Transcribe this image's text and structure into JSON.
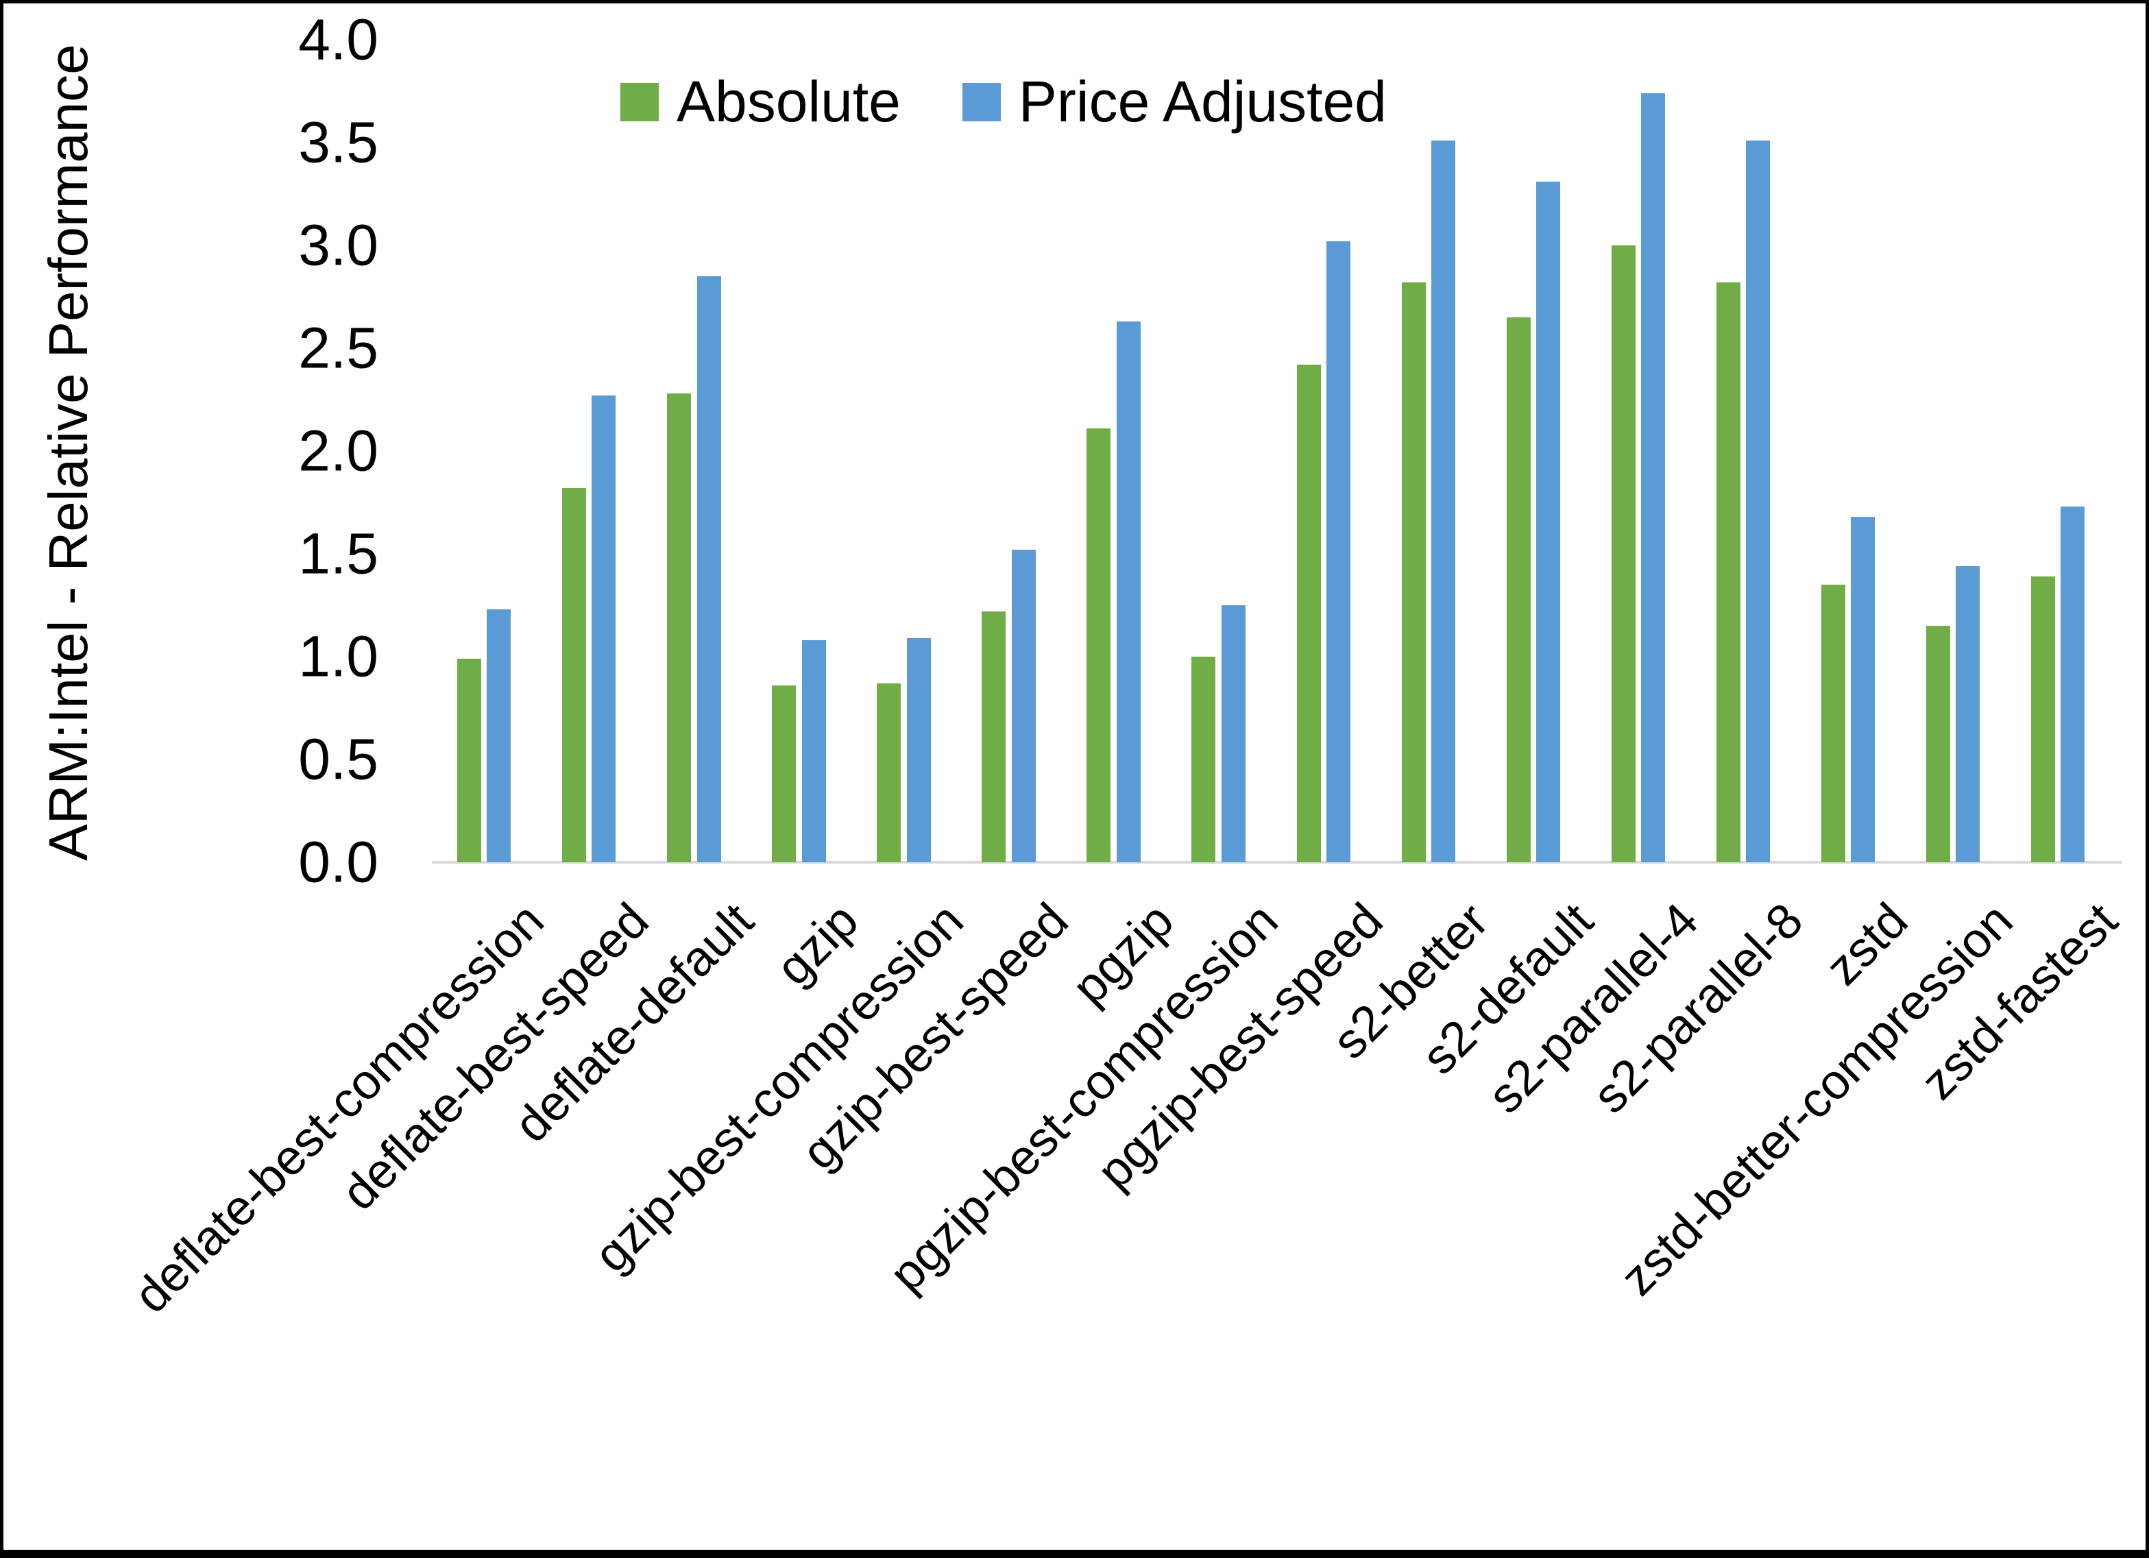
{
  "chart_data": {
    "type": "bar",
    "title": "",
    "xlabel": "",
    "ylabel": "ARM:Intel - Relative Performance",
    "ylim": [
      0.0,
      4.0
    ],
    "ytick_step": 0.5,
    "ytick_labels": [
      "0.0",
      "0.5",
      "1.0",
      "1.5",
      "2.0",
      "2.5",
      "3.0",
      "3.5",
      "4.0"
    ],
    "grid": false,
    "legend_position": "top-center-inside",
    "categories": [
      "deflate-best-compression",
      "deflate-best-speed",
      "deflate-default",
      "gzip",
      "gzip-best-compression",
      "gzip-best-speed",
      "pgzip",
      "pgzip-best-compression",
      "pgzip-best-speed",
      "s2-better",
      "s2-default",
      "s2-parallel-4",
      "s2-parallel-8",
      "zstd",
      "zstd-better-compression",
      "zstd-fastest"
    ],
    "series": [
      {
        "name": "Absolute",
        "color": "#70AD47",
        "values": [
          0.99,
          1.82,
          2.28,
          0.86,
          0.87,
          1.22,
          2.11,
          1.0,
          2.42,
          2.82,
          2.65,
          3.0,
          2.82,
          1.35,
          1.15,
          1.39
        ]
      },
      {
        "name": "Price Adjusted",
        "color": "#5B9BD5",
        "values": [
          1.23,
          2.27,
          2.85,
          1.08,
          1.09,
          1.52,
          2.63,
          1.25,
          3.02,
          3.51,
          3.31,
          3.74,
          3.51,
          1.68,
          1.44,
          1.73
        ]
      }
    ],
    "colors": {
      "axis_line": "#d9d9d9",
      "text": "#000000",
      "frame_border": "#000000",
      "background": "#ffffff"
    }
  }
}
